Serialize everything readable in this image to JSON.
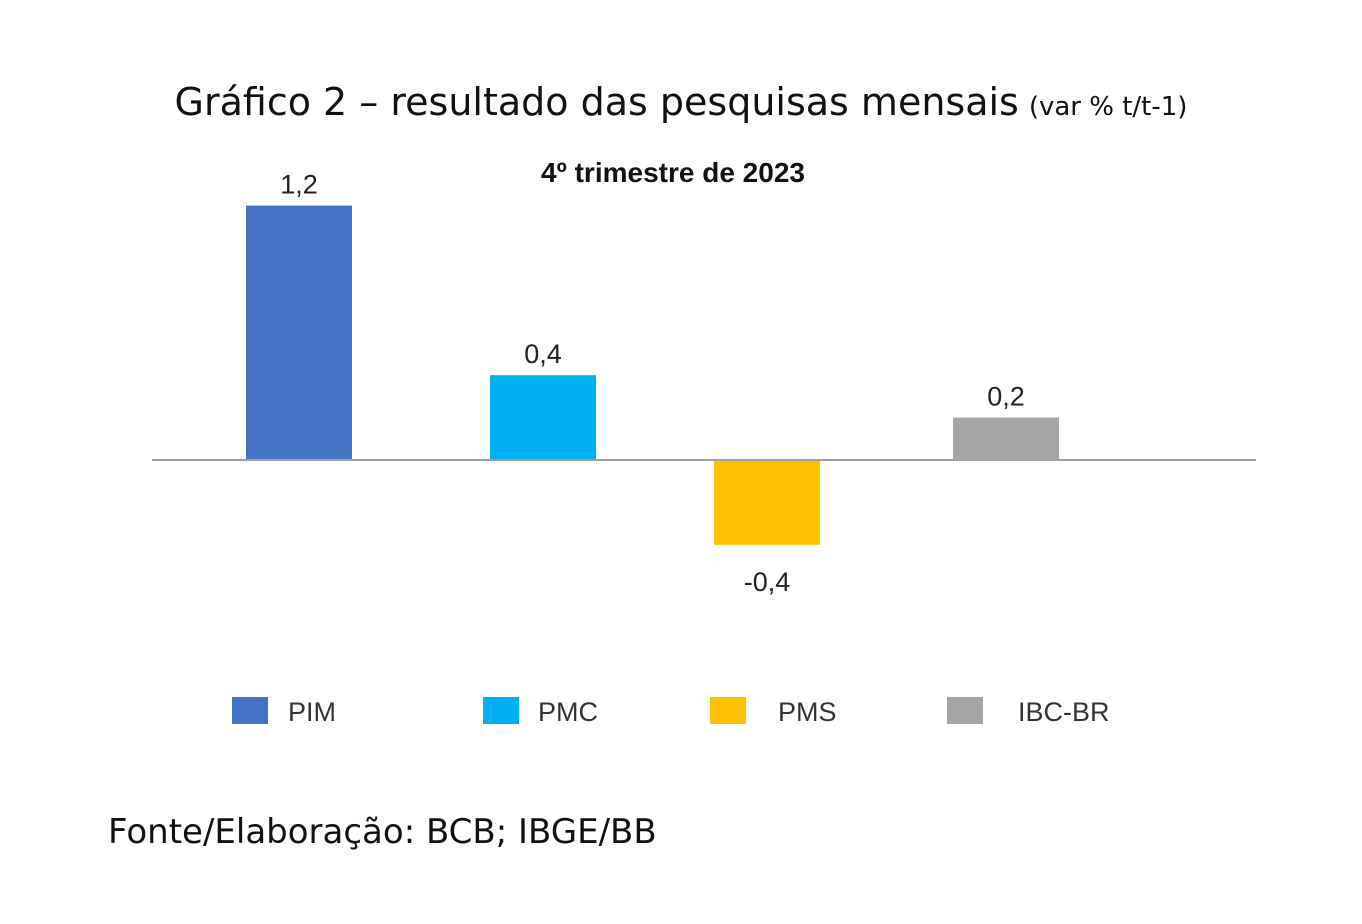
{
  "heading": {
    "main": "Gráfico 2 – resultado das pesquisas mensais",
    "suffix": "(var % t/t-1)"
  },
  "source": "Fonte/Elaboração: BCB; IBGE/BB",
  "chart_data": {
    "type": "bar",
    "title": "4º trimestre de 2023",
    "categories": [
      "PIM",
      "PMC",
      "PMS",
      "IBC-BR"
    ],
    "values": [
      1.2,
      0.4,
      -0.4,
      0.2
    ],
    "value_labels": [
      "1,2",
      "0,4",
      "-0,4",
      "0,2"
    ],
    "colors": [
      "#4472C4",
      "#00B0F0",
      "#FFC000",
      "#A5A5A5"
    ],
    "xlabel": "",
    "ylabel": "",
    "ylim": [
      -0.5,
      1.3
    ],
    "grid": false,
    "axis_visible": false,
    "legend_position": "bottom",
    "legend": [
      "PIM",
      "PMC",
      "PMS",
      "IBC-BR"
    ]
  }
}
